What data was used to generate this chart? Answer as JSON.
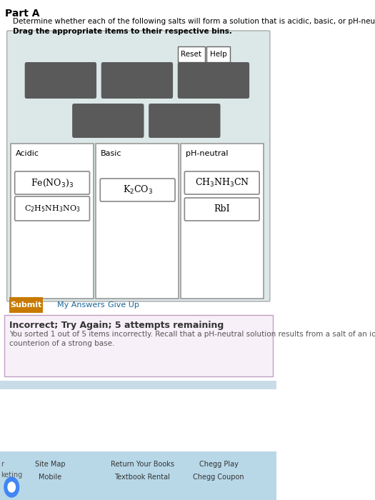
{
  "title": "Part A",
  "line1": "Determine whether each of the following salts will form a solution that is acidic, basic, or pH-neutral",
  "line2": "Drag the appropriate items to their respective bins.",
  "main_panel_bg": "#dce8e8",
  "dark_boxes_color": "#5a5a5a",
  "bin_labels": [
    "Acidic",
    "Basic",
    "pH-neutral"
  ],
  "submit_color": "#c87a00",
  "submit_text": "Submit",
  "feedback_bg": "#f8f0f8",
  "feedback_border": "#c0a0c0",
  "feedback_title": "Incorrect; Try Again; 5 attempts remaining",
  "feedback_line1": "You sorted 1 out of 5 items incorrectly. Recall that a pH-neutral solution results from a salt of an io",
  "feedback_line2": "counterion of a strong base.",
  "footer_items": [
    "Site Map",
    "Mobile",
    "Return Your Books",
    "Textbook Rental",
    "Chegg Play",
    "Chegg Coupon"
  ],
  "footer_bg": "#b8d8e8",
  "reset_text": "Reset",
  "help_text": "Help",
  "my_answers_text": "My Answers",
  "give_up_text": "Give Up",
  "link_color": "#1a6699",
  "acidic_formula1": "Fe(NO$_3$)$_3$",
  "acidic_formula2": "C$_2$H$_5$NH$_3$NO$_3$",
  "basic_formula1": "K$_2$CO$_3$",
  "neutral_formula1": "CH$_3$NH$_3$CN",
  "neutral_formula2": "RbI"
}
